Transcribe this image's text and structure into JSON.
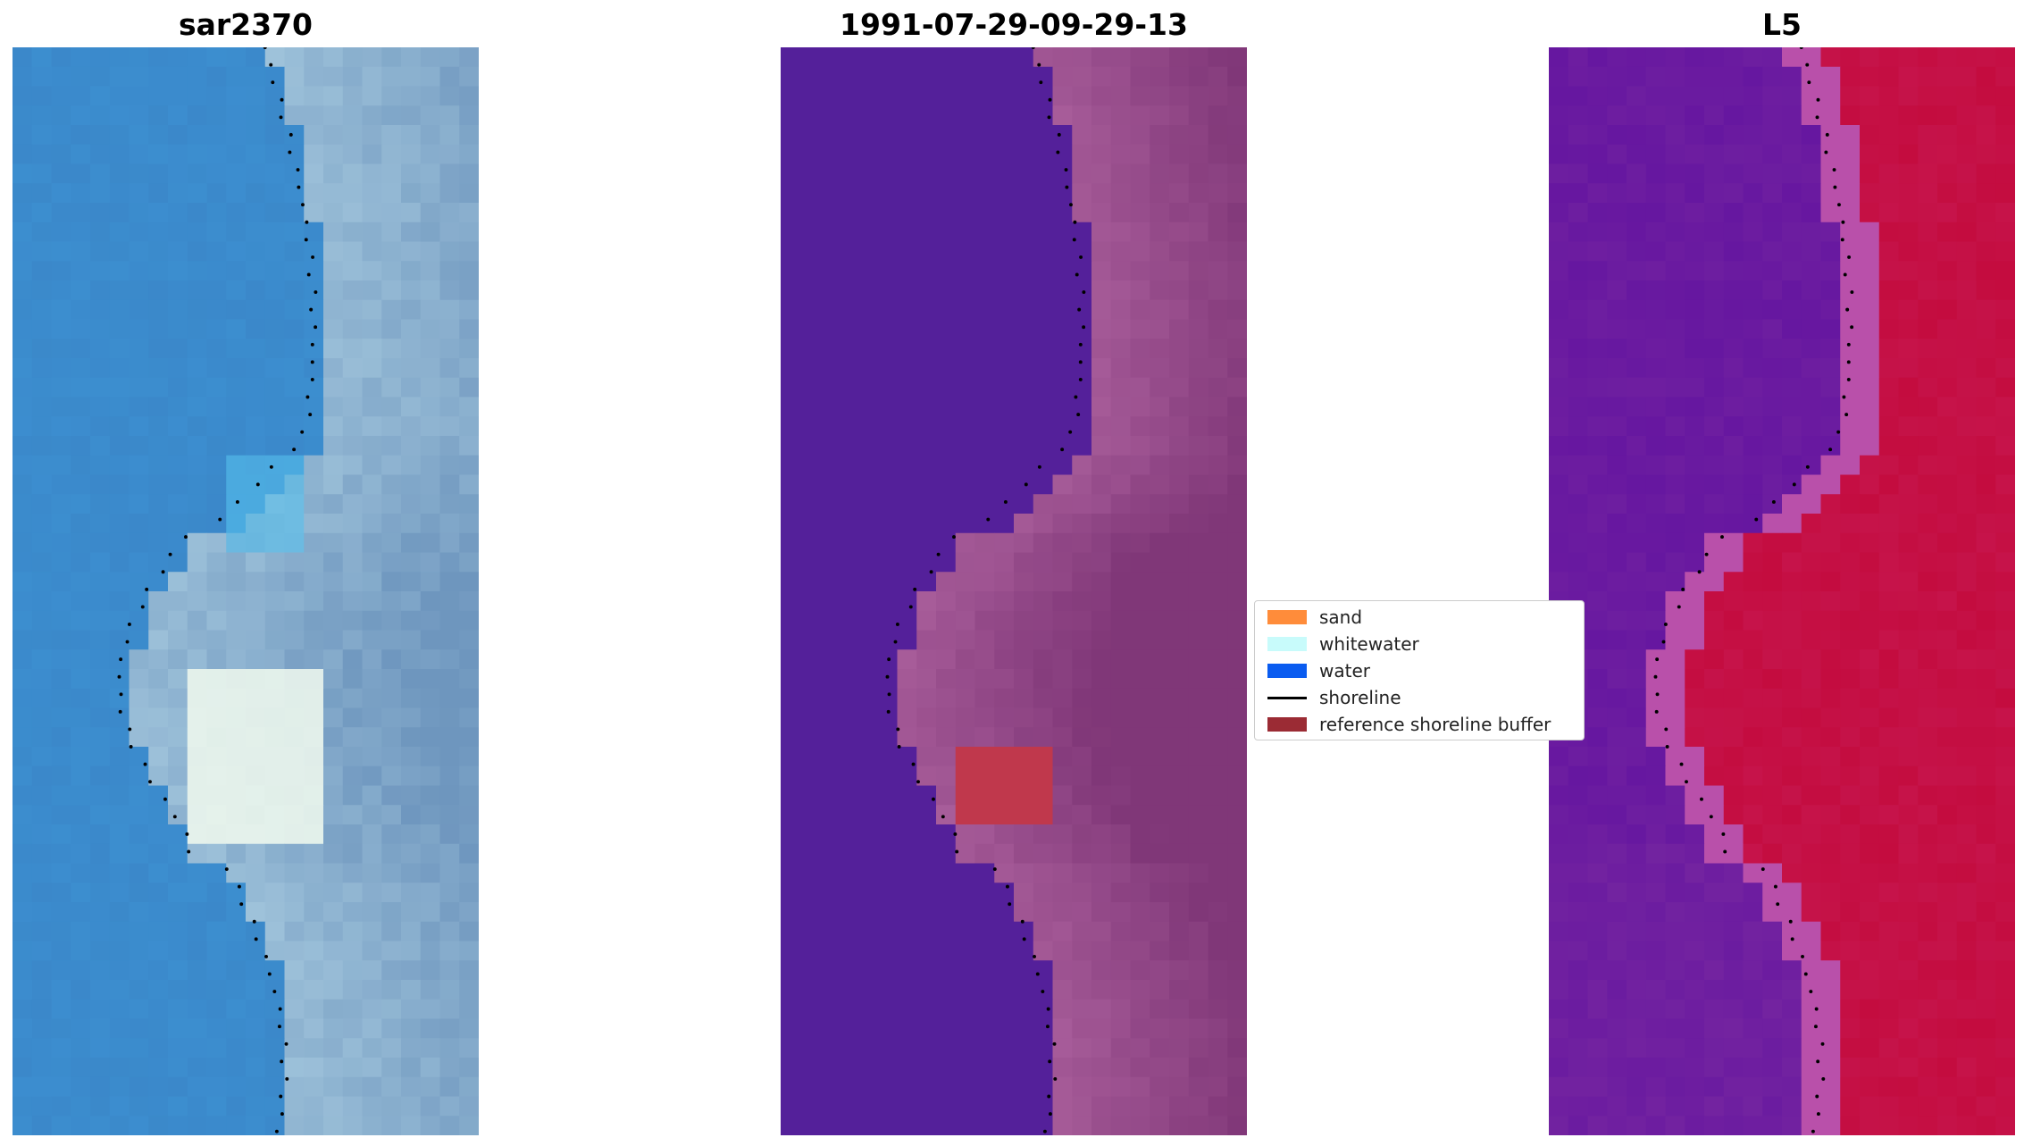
{
  "panels": [
    {
      "title": "sar2370",
      "scene": "rgb"
    },
    {
      "title": "1991-07-29-09-29-13",
      "scene": "classified"
    },
    {
      "title": "L5",
      "scene": "index"
    }
  ],
  "legend": {
    "items": [
      {
        "label": "sand",
        "type": "patch",
        "color": "#ff8c3a"
      },
      {
        "label": "whitewater",
        "type": "patch",
        "color": "#c8fbfb"
      },
      {
        "label": "water",
        "type": "patch",
        "color": "#0a5cf0"
      },
      {
        "label": "shoreline",
        "type": "line",
        "color": "#000000"
      },
      {
        "label": "reference shoreline buffer",
        "type": "patch",
        "color": "#9b2b34"
      }
    ]
  },
  "colors": {
    "water_class": "#54209a",
    "beach_class": "#a85d9a",
    "buffer_patch": "#c0384c",
    "index_low": "#5e0fa0",
    "index_high": "#c40c3f",
    "rgb_water": "#3b82c4",
    "rgb_foam": "#f2fbef",
    "shoreline": "#000000"
  }
}
